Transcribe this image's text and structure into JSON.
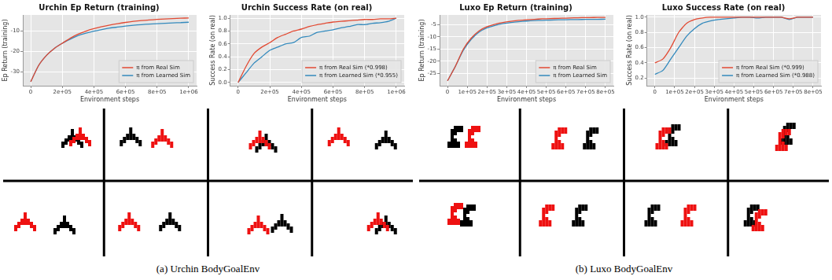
{
  "chart_data": [
    {
      "type": "line",
      "title": "Urchin Ep Return (training)",
      "x_label": "Environment steps",
      "y_label": "Ep Return (training)",
      "x": [
        0,
        50000,
        100000,
        150000,
        200000,
        250000,
        300000,
        350000,
        400000,
        450000,
        500000,
        550000,
        600000,
        650000,
        700000,
        750000,
        800000,
        850000,
        900000,
        950000,
        1000000
      ],
      "series": [
        {
          "name": "π from Real Sim",
          "color": "#e24a33",
          "values": [
            -35,
            -27,
            -22,
            -18.5,
            -16,
            -13.5,
            -11.5,
            -10,
            -8.8,
            -7.8,
            -7,
            -6.3,
            -5.7,
            -5.2,
            -4.8,
            -4.5,
            -4.2,
            -4,
            -3.8,
            -3.6,
            -3.5
          ]
        },
        {
          "name": "π from Learned Sim",
          "color": "#348abd",
          "values": [
            -35,
            -27,
            -22,
            -18.5,
            -16,
            -14,
            -12.2,
            -11,
            -10,
            -9.2,
            -8.5,
            -8,
            -7.5,
            -7.1,
            -6.8,
            -6.5,
            -6.3,
            -6.1,
            -5.9,
            -5.8,
            -5.6
          ]
        }
      ],
      "xlim": [
        -50000,
        1050000
      ],
      "xticks": [
        0,
        {
          "value": 200000,
          "label": "2e+05"
        },
        {
          "value": 400000,
          "label": "4e+05"
        },
        {
          "value": 600000,
          "label": "6e+05"
        },
        {
          "value": 800000,
          "label": "8e+05"
        },
        {
          "value": 1000000,
          "label": "1e+06"
        }
      ],
      "ylim": [
        -37,
        -2
      ],
      "yticks": [
        -30,
        -20,
        -10
      ],
      "grid": true,
      "legend": "lower right"
    },
    {
      "type": "line",
      "title": "Urchin Success Rate (on real)",
      "x_label": "Environment steps",
      "y_label": "Success Rate (on real)",
      "x": [
        0,
        50000,
        100000,
        150000,
        200000,
        250000,
        300000,
        350000,
        400000,
        450000,
        500000,
        550000,
        600000,
        650000,
        700000,
        750000,
        800000,
        850000,
        900000,
        950000,
        1000000
      ],
      "series": [
        {
          "name": "π from Real Sim (*0.998)",
          "color": "#e24a33",
          "values": [
            0.0,
            0.25,
            0.45,
            0.55,
            0.62,
            0.7,
            0.75,
            0.8,
            0.83,
            0.87,
            0.9,
            0.92,
            0.94,
            0.95,
            0.96,
            0.97,
            0.98,
            0.98,
            0.99,
            0.99,
            1.0
          ]
        },
        {
          "name": "π from Learned Sim (*0.955)",
          "color": "#348abd",
          "values": [
            0.0,
            0.15,
            0.3,
            0.4,
            0.5,
            0.55,
            0.6,
            0.62,
            0.7,
            0.72,
            0.78,
            0.8,
            0.82,
            0.85,
            0.87,
            0.9,
            0.9,
            0.92,
            0.93,
            0.95,
            1.0
          ]
        }
      ],
      "xlim": [
        -50000,
        1050000
      ],
      "xticks": [
        0,
        {
          "value": 200000,
          "label": "2e+05"
        },
        {
          "value": 400000,
          "label": "4e+05"
        },
        {
          "value": 600000,
          "label": "6e+05"
        },
        {
          "value": 800000,
          "label": "8e+05"
        },
        {
          "value": 1000000,
          "label": "1e+06"
        }
      ],
      "ylim": [
        -0.05,
        1.05
      ],
      "yticks": [
        {
          "value": 0,
          "label": "0.0"
        },
        0.2,
        0.4,
        0.6,
        0.8,
        {
          "value": 1,
          "label": "1.0"
        }
      ],
      "grid": true,
      "legend": "lower right"
    },
    {
      "type": "line",
      "title": "Luxo Ep Return (training)",
      "x_label": "Environment steps",
      "y_label": "Ep Return (training)",
      "x": [
        0,
        40000,
        80000,
        120000,
        160000,
        200000,
        240000,
        280000,
        320000,
        360000,
        400000,
        440000,
        480000,
        520000,
        560000,
        600000,
        640000,
        680000,
        720000,
        760000,
        800000
      ],
      "series": [
        {
          "name": "π from Real Sim",
          "color": "#e24a33",
          "values": [
            -28,
            -22,
            -15,
            -10.5,
            -7.5,
            -5.8,
            -4.8,
            -4.1,
            -3.6,
            -3.2,
            -3,
            -2.8,
            -2.6,
            -2.5,
            -2.4,
            -2.3,
            -2.2,
            -2.1,
            -2.1,
            -2,
            -2
          ]
        },
        {
          "name": "π from Learned Sim",
          "color": "#348abd",
          "values": [
            -28,
            -22,
            -15.5,
            -11,
            -8,
            -6.3,
            -5.3,
            -4.6,
            -4.1,
            -3.8,
            -3.5,
            -3.3,
            -3.2,
            -3.1,
            -3,
            -2.95,
            -2.9,
            -2.85,
            -2.8,
            -2.8,
            -2.75
          ]
        }
      ],
      "xlim": [
        -40000,
        840000
      ],
      "xticks": [
        0,
        {
          "value": 100000,
          "label": "1e+05"
        },
        {
          "value": 200000,
          "label": "2e+05"
        },
        {
          "value": 300000,
          "label": "3e+05"
        },
        {
          "value": 400000,
          "label": "4e+05"
        },
        {
          "value": 500000,
          "label": "5e+05"
        },
        {
          "value": 600000,
          "label": "6e+05"
        },
        {
          "value": 700000,
          "label": "7e+05"
        },
        {
          "value": 800000,
          "label": "8e+05"
        }
      ],
      "ylim": [
        -30,
        -1
      ],
      "yticks": [
        -25,
        -20,
        -15,
        -10,
        -5
      ],
      "grid": true,
      "legend": "lower right"
    },
    {
      "type": "line",
      "title": "Luxo Success Rate (on real)",
      "x_label": "Environment steps",
      "y_label": "Success Rate (on real)",
      "x": [
        0,
        40000,
        80000,
        120000,
        160000,
        200000,
        240000,
        280000,
        320000,
        360000,
        400000,
        440000,
        480000,
        520000,
        560000,
        600000,
        640000,
        680000,
        720000,
        760000,
        800000
      ],
      "series": [
        {
          "name": "π from Real Sim (*0.999)",
          "color": "#e24a33",
          "values": [
            0.4,
            0.45,
            0.6,
            0.8,
            0.92,
            0.97,
            0.99,
            1,
            1,
            1,
            1,
            1,
            1,
            1,
            1,
            1,
            1,
            0.98,
            1,
            1,
            1
          ]
        },
        {
          "name": "π from Learned Sim (*0.988)",
          "color": "#348abd",
          "values": [
            0.25,
            0.3,
            0.45,
            0.6,
            0.75,
            0.85,
            0.92,
            0.95,
            0.97,
            0.98,
            0.99,
            1,
            1,
            0.99,
            1,
            1,
            1,
            0.97,
            1,
            1,
            1
          ]
        }
      ],
      "xlim": [
        -40000,
        840000
      ],
      "xticks": [
        0,
        {
          "value": 100000,
          "label": "1e+05"
        },
        {
          "value": 200000,
          "label": "2e+05"
        },
        {
          "value": 300000,
          "label": "3e+05"
        },
        {
          "value": 400000,
          "label": "4e+05"
        },
        {
          "value": 500000,
          "label": "5e+05"
        },
        {
          "value": 600000,
          "label": "6e+05"
        },
        {
          "value": 700000,
          "label": "7e+05"
        },
        {
          "value": 800000,
          "label": "8e+05"
        }
      ],
      "ylim": [
        0.1,
        1.03
      ],
      "yticks": [
        0.2,
        0.4,
        0.6,
        0.8,
        {
          "value": 1,
          "label": "1.0"
        }
      ],
      "grid": true,
      "legend": "lower right"
    }
  ],
  "captions": [
    "(a) Urchin BodyGoalEnv",
    "(b) Luxo BodyGoalEnv"
  ]
}
